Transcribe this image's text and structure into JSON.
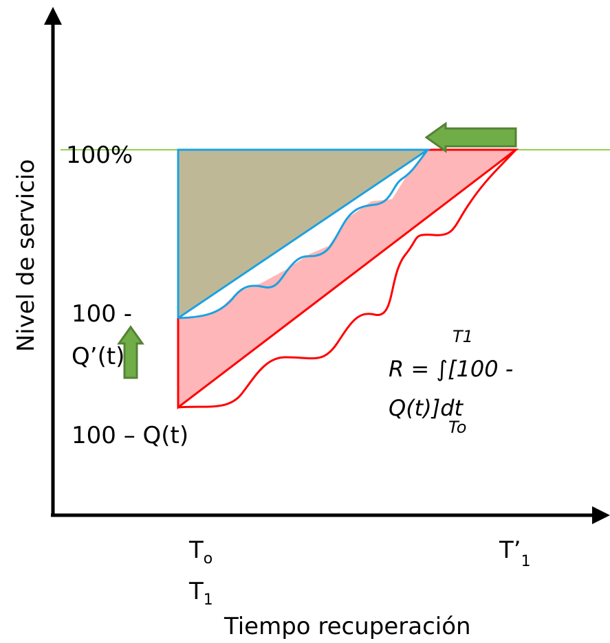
{
  "y_axis_label": "Nivel de servicio",
  "x_axis_label": "Tiempo recuperación",
  "level_labels": {
    "full": "100%",
    "q_prime_line1": "100 -",
    "q_prime_line2": "Q’(t)",
    "q": "100 – Q(t)"
  },
  "time_labels": {
    "t0_base": "T",
    "t0_sub": "o",
    "t1_base": "T",
    "t1_sub": "1",
    "t1_prime_base": "T’",
    "t1_prime_sub": "1"
  },
  "formula": {
    "line1": "R = ∫[100 -",
    "line2": "Q(t)]dt",
    "upper_limit": "T1",
    "lower_limit": "To"
  },
  "colors": {
    "axis": "#000000",
    "full_level_line": "#92d050",
    "blue_curve": "#1ba1e2",
    "red_curve": "#ff0000",
    "gray_fill": "#bfb896",
    "pink_fill": "#ffb6b8",
    "arrow_fill": "#70ad47",
    "arrow_stroke": "#548235"
  }
}
